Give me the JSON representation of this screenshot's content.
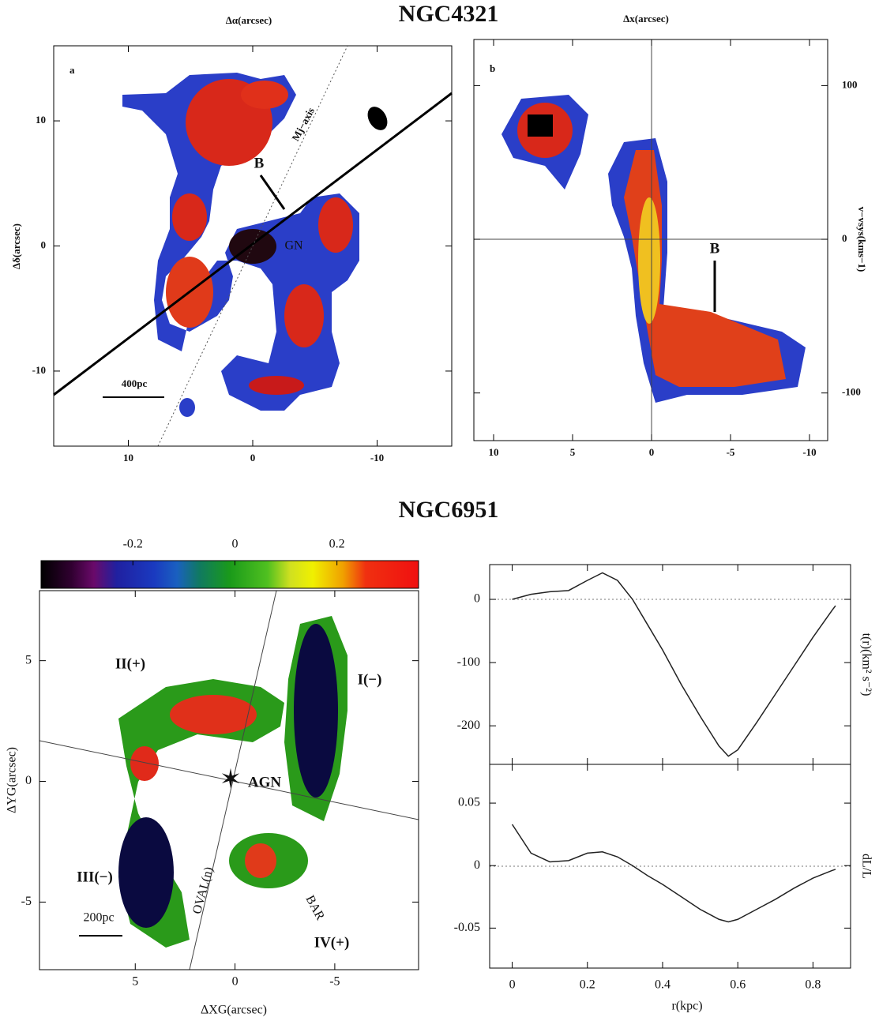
{
  "titles": [
    "NGC4321",
    "NGC6951"
  ],
  "chart_data": [
    {
      "type": "map",
      "panel_label": "a",
      "xlabel": "Δα(arcsec)",
      "ylabel": "Δδ(arcsec)",
      "xlim": [
        16,
        -16
      ],
      "ylim": [
        -16,
        16
      ],
      "xticks": [
        10,
        0,
        -10
      ],
      "yticks": [
        10,
        0,
        -10
      ],
      "annotations": [
        "B",
        "GN",
        "Mj−axis",
        "400pc"
      ]
    },
    {
      "type": "map",
      "panel_label": "b",
      "xlabel": "Δx(arcsec)",
      "ylabel": "v−vsys(kms−1)",
      "xlim": [
        11.25,
        -11.15
      ],
      "ylim": [
        -131,
        130
      ],
      "xticks": [
        10,
        5,
        0,
        -5,
        -10
      ],
      "yticks": [
        100,
        0,
        -100
      ],
      "annotations": [
        "B"
      ]
    },
    {
      "type": "map",
      "xlabel": "ΔXG(arcsec)",
      "ylabel": "ΔYG(arcsec)",
      "xlim": [
        9.8,
        -9.2
      ],
      "ylim": [
        -7.8,
        7.9
      ],
      "xticks": [
        5,
        0,
        -5
      ],
      "yticks": [
        5,
        0,
        -5
      ],
      "colorbar_lim": [
        -0.38,
        0.36
      ],
      "colorbar_ticks": [
        -0.2,
        0,
        0.2
      ],
      "annotations": [
        "II(+)",
        "I(−)",
        "III(−)",
        "IV(+)",
        "AGN",
        "BAR",
        "OVAL(n)",
        "200pc"
      ]
    },
    {
      "type": "line",
      "xlabel": "r(kpc)",
      "xlim": [
        -0.06,
        0.9
      ],
      "xticks": [
        0,
        0.2,
        0.4,
        0.6,
        0.8
      ],
      "color": "#222",
      "x": [
        0,
        0.05,
        0.1,
        0.15,
        0.2,
        0.24,
        0.28,
        0.32,
        0.36,
        0.4,
        0.45,
        0.5,
        0.55,
        0.575,
        0.6,
        0.65,
        0.7,
        0.75,
        0.8,
        0.85,
        0.86
      ],
      "panels": [
        {
          "ylabel": "t(r)(km² s⁻²)",
          "ylim": [
            -261,
            55
          ],
          "yticks": [
            0,
            -100,
            -200
          ],
          "values": [
            0,
            8,
            12,
            14,
            30,
            42,
            30,
            0,
            -40,
            -80,
            -135,
            -185,
            -232,
            -248,
            -238,
            -195,
            -150,
            -105,
            -60,
            -18,
            -10
          ]
        },
        {
          "ylabel": "dL/L",
          "ylim": [
            -0.082,
            0.081
          ],
          "yticks": [
            0.05,
            0,
            -0.05
          ],
          "values": [
            0.033,
            0.01,
            0.003,
            0.004,
            0.01,
            0.011,
            0.007,
            0,
            -0.008,
            -0.015,
            -0.025,
            -0.035,
            -0.043,
            -0.045,
            -0.043,
            -0.035,
            -0.027,
            -0.018,
            -0.01,
            -0.004,
            -0.003
          ]
        }
      ]
    }
  ]
}
